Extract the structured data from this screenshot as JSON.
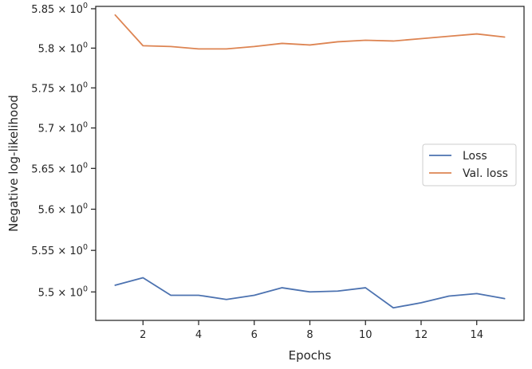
{
  "chart_data": {
    "type": "line",
    "xlabel": "Epochs",
    "ylabel": "Negative log-likelihood",
    "x": [
      1,
      2,
      3,
      4,
      5,
      6,
      7,
      8,
      9,
      10,
      11,
      12,
      13,
      14,
      15
    ],
    "xticks": [
      2,
      4,
      6,
      8,
      10,
      12,
      14
    ],
    "xlim": [
      0.3,
      15.7
    ],
    "ylim": [
      5.466,
      5.853
    ],
    "yscale": "log",
    "yticks": [
      {
        "value": 5.5,
        "mantissa": "5.5"
      },
      {
        "value": 5.55,
        "mantissa": "5.55"
      },
      {
        "value": 5.6,
        "mantissa": "5.6"
      },
      {
        "value": 5.65,
        "mantissa": "5.65"
      },
      {
        "value": 5.7,
        "mantissa": "5.7"
      },
      {
        "value": 5.75,
        "mantissa": "5.75"
      },
      {
        "value": 5.8,
        "mantissa": "5.8"
      },
      {
        "value": 5.85,
        "mantissa": "5.85"
      }
    ],
    "ytick_suffix": "× 10",
    "ytick_exponent": "0",
    "series": [
      {
        "name": "Loss",
        "color": "#4c72b0",
        "values": [
          5.508,
          5.517,
          5.496,
          5.496,
          5.491,
          5.496,
          5.505,
          5.5,
          5.501,
          5.505,
          5.481,
          5.487,
          5.495,
          5.498,
          5.492
        ]
      },
      {
        "name": "Val. loss",
        "color": "#dd8452",
        "values": [
          5.842,
          5.803,
          5.802,
          5.799,
          5.799,
          5.802,
          5.806,
          5.804,
          5.808,
          5.81,
          5.809,
          5.812,
          5.815,
          5.818,
          5.814
        ]
      }
    ],
    "legend_position": "center-right",
    "grid": false
  }
}
